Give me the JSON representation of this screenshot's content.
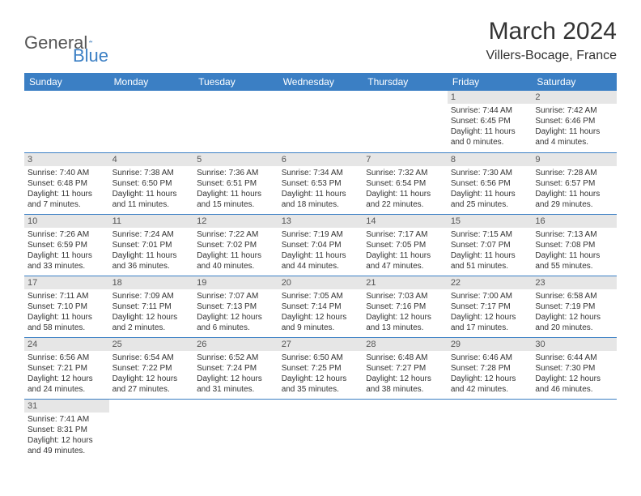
{
  "logo": {
    "text1": "General",
    "text2": "Blue"
  },
  "title": {
    "month": "March 2024",
    "location": "Villers-Bocage, France"
  },
  "colors": {
    "header_bg": "#3b7fc4",
    "header_text": "#ffffff",
    "daynum_bg": "#e6e6e6",
    "border": "#3b7fc4",
    "body_text": "#333333",
    "background": "#ffffff"
  },
  "typography": {
    "month_title_size": 30,
    "location_size": 16,
    "weekday_size": 12,
    "daynum_size": 11,
    "cell_size": 10
  },
  "weekdays": [
    "Sunday",
    "Monday",
    "Tuesday",
    "Wednesday",
    "Thursday",
    "Friday",
    "Saturday"
  ],
  "grid": {
    "rows": 6,
    "cols": 7
  },
  "days": [
    null,
    null,
    null,
    null,
    null,
    {
      "n": "1",
      "sunrise": "7:44 AM",
      "sunset": "6:45 PM",
      "daylight": "11 hours and 0 minutes."
    },
    {
      "n": "2",
      "sunrise": "7:42 AM",
      "sunset": "6:46 PM",
      "daylight": "11 hours and 4 minutes."
    },
    {
      "n": "3",
      "sunrise": "7:40 AM",
      "sunset": "6:48 PM",
      "daylight": "11 hours and 7 minutes."
    },
    {
      "n": "4",
      "sunrise": "7:38 AM",
      "sunset": "6:50 PM",
      "daylight": "11 hours and 11 minutes."
    },
    {
      "n": "5",
      "sunrise": "7:36 AM",
      "sunset": "6:51 PM",
      "daylight": "11 hours and 15 minutes."
    },
    {
      "n": "6",
      "sunrise": "7:34 AM",
      "sunset": "6:53 PM",
      "daylight": "11 hours and 18 minutes."
    },
    {
      "n": "7",
      "sunrise": "7:32 AM",
      "sunset": "6:54 PM",
      "daylight": "11 hours and 22 minutes."
    },
    {
      "n": "8",
      "sunrise": "7:30 AM",
      "sunset": "6:56 PM",
      "daylight": "11 hours and 25 minutes."
    },
    {
      "n": "9",
      "sunrise": "7:28 AM",
      "sunset": "6:57 PM",
      "daylight": "11 hours and 29 minutes."
    },
    {
      "n": "10",
      "sunrise": "7:26 AM",
      "sunset": "6:59 PM",
      "daylight": "11 hours and 33 minutes."
    },
    {
      "n": "11",
      "sunrise": "7:24 AM",
      "sunset": "7:01 PM",
      "daylight": "11 hours and 36 minutes."
    },
    {
      "n": "12",
      "sunrise": "7:22 AM",
      "sunset": "7:02 PM",
      "daylight": "11 hours and 40 minutes."
    },
    {
      "n": "13",
      "sunrise": "7:19 AM",
      "sunset": "7:04 PM",
      "daylight": "11 hours and 44 minutes."
    },
    {
      "n": "14",
      "sunrise": "7:17 AM",
      "sunset": "7:05 PM",
      "daylight": "11 hours and 47 minutes."
    },
    {
      "n": "15",
      "sunrise": "7:15 AM",
      "sunset": "7:07 PM",
      "daylight": "11 hours and 51 minutes."
    },
    {
      "n": "16",
      "sunrise": "7:13 AM",
      "sunset": "7:08 PM",
      "daylight": "11 hours and 55 minutes."
    },
    {
      "n": "17",
      "sunrise": "7:11 AM",
      "sunset": "7:10 PM",
      "daylight": "11 hours and 58 minutes."
    },
    {
      "n": "18",
      "sunrise": "7:09 AM",
      "sunset": "7:11 PM",
      "daylight": "12 hours and 2 minutes."
    },
    {
      "n": "19",
      "sunrise": "7:07 AM",
      "sunset": "7:13 PM",
      "daylight": "12 hours and 6 minutes."
    },
    {
      "n": "20",
      "sunrise": "7:05 AM",
      "sunset": "7:14 PM",
      "daylight": "12 hours and 9 minutes."
    },
    {
      "n": "21",
      "sunrise": "7:03 AM",
      "sunset": "7:16 PM",
      "daylight": "12 hours and 13 minutes."
    },
    {
      "n": "22",
      "sunrise": "7:00 AM",
      "sunset": "7:17 PM",
      "daylight": "12 hours and 17 minutes."
    },
    {
      "n": "23",
      "sunrise": "6:58 AM",
      "sunset": "7:19 PM",
      "daylight": "12 hours and 20 minutes."
    },
    {
      "n": "24",
      "sunrise": "6:56 AM",
      "sunset": "7:21 PM",
      "daylight": "12 hours and 24 minutes."
    },
    {
      "n": "25",
      "sunrise": "6:54 AM",
      "sunset": "7:22 PM",
      "daylight": "12 hours and 27 minutes."
    },
    {
      "n": "26",
      "sunrise": "6:52 AM",
      "sunset": "7:24 PM",
      "daylight": "12 hours and 31 minutes."
    },
    {
      "n": "27",
      "sunrise": "6:50 AM",
      "sunset": "7:25 PM",
      "daylight": "12 hours and 35 minutes."
    },
    {
      "n": "28",
      "sunrise": "6:48 AM",
      "sunset": "7:27 PM",
      "daylight": "12 hours and 38 minutes."
    },
    {
      "n": "29",
      "sunrise": "6:46 AM",
      "sunset": "7:28 PM",
      "daylight": "12 hours and 42 minutes."
    },
    {
      "n": "30",
      "sunrise": "6:44 AM",
      "sunset": "7:30 PM",
      "daylight": "12 hours and 46 minutes."
    },
    {
      "n": "31",
      "sunrise": "7:41 AM",
      "sunset": "8:31 PM",
      "daylight": "12 hours and 49 minutes."
    },
    null,
    null,
    null,
    null,
    null,
    null
  ],
  "labels": {
    "sunrise": "Sunrise: ",
    "sunset": "Sunset: ",
    "daylight": "Daylight: "
  }
}
